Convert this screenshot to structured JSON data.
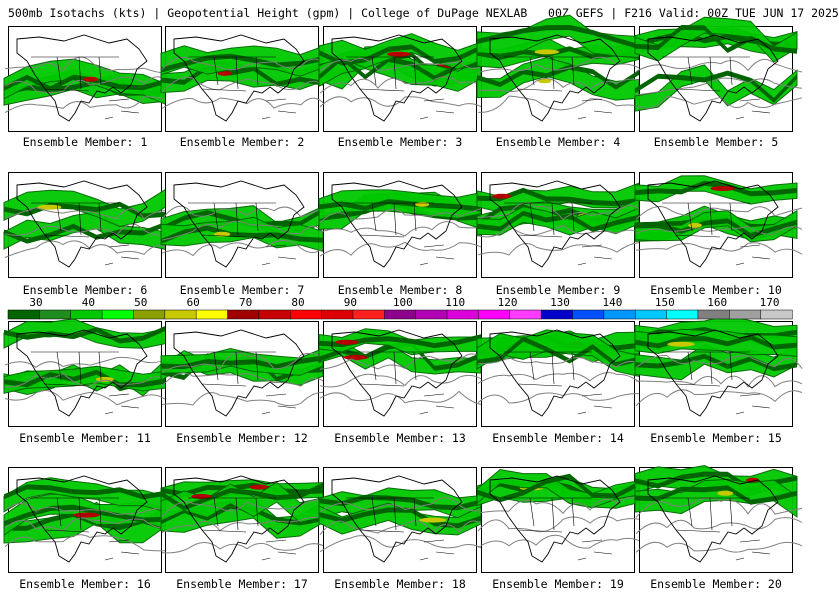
{
  "header": {
    "title": "500mb Isotachs (kts) | Geopotential Height (gpm) | College of DuPage NEXLAB   00Z GEFS | F216 Valid: 00Z TUE JUN 17 2025"
  },
  "members": [
    {
      "label": "Ensemble Member: 1"
    },
    {
      "label": "Ensemble Member: 2"
    },
    {
      "label": "Ensemble Member: 3"
    },
    {
      "label": "Ensemble Member: 4"
    },
    {
      "label": "Ensemble Member: 5"
    },
    {
      "label": "Ensemble Member: 6"
    },
    {
      "label": "Ensemble Member: 7"
    },
    {
      "label": "Ensemble Member: 8"
    },
    {
      "label": "Ensemble Member: 9"
    },
    {
      "label": "Ensemble Member: 10"
    },
    {
      "label": "Ensemble Member: 11"
    },
    {
      "label": "Ensemble Member: 12"
    },
    {
      "label": "Ensemble Member: 13"
    },
    {
      "label": "Ensemble Member: 14"
    },
    {
      "label": "Ensemble Member: 15"
    },
    {
      "label": "Ensemble Member: 16"
    },
    {
      "label": "Ensemble Member: 17"
    },
    {
      "label": "Ensemble Member: 18"
    },
    {
      "label": "Ensemble Member: 19"
    },
    {
      "label": "Ensemble Member: 20"
    }
  ],
  "colorbar": {
    "ticks": [
      "30",
      "40",
      "50",
      "60",
      "70",
      "80",
      "90",
      "100",
      "110",
      "120",
      "130",
      "140",
      "150",
      "160",
      "170"
    ],
    "colors": [
      "#006400",
      "#1e8c1e",
      "#00c800",
      "#00ff00",
      "#8ca000",
      "#c8c800",
      "#ffff00",
      "#a00000",
      "#c80000",
      "#ff0000",
      "#dc0000",
      "#ff2020",
      "#8c008c",
      "#b400b4",
      "#dc00dc",
      "#ff00ff",
      "#ff3cff",
      "#0000c8",
      "#0050ff",
      "#0096ff",
      "#00c8ff",
      "#00ffff",
      "#808080",
      "#a0a0a0",
      "#c8c8c8"
    ],
    "unit": "kts"
  },
  "palette": {
    "jet_light": "#00c800",
    "jet_dark": "#006400",
    "jet_core_yellow": "#c8c800",
    "jet_core_red": "#b40000",
    "height_contour": "#808080",
    "coastline": "#000000"
  }
}
